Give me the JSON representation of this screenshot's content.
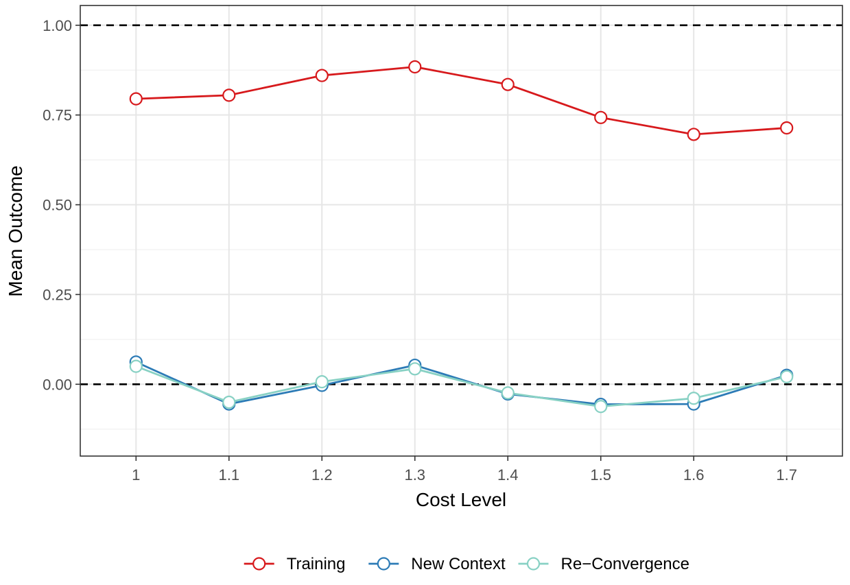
{
  "chart_data": {
    "type": "line",
    "title": "",
    "xlabel": "Cost Level",
    "ylabel": "Mean Outcome",
    "x": [
      1,
      1.1,
      1.2,
      1.3,
      1.4,
      1.5,
      1.6,
      1.7
    ],
    "x_tick_labels": [
      "1",
      "1.1",
      "1.2",
      "1.3",
      "1.4",
      "1.5",
      "1.6",
      "1.7"
    ],
    "y_ticks": [
      0,
      0.25,
      0.5,
      0.75,
      1
    ],
    "y_tick_labels": [
      "0.00",
      "0.25",
      "0.50",
      "0.75",
      "1.00"
    ],
    "xlim": [
      0.94,
      1.76
    ],
    "ylim": [
      -0.2,
      1.055
    ],
    "grid": true,
    "legend_position": "bottom",
    "reference_lines": [
      0,
      1
    ],
    "series": [
      {
        "name": "Training",
        "color": "#d7191c",
        "values": [
          0.795,
          0.805,
          0.86,
          0.884,
          0.835,
          0.743,
          0.696,
          0.714
        ]
      },
      {
        "name": "New Context",
        "color": "#2c7bb6",
        "values": [
          0.062,
          -0.055,
          -0.003,
          0.053,
          -0.027,
          -0.056,
          -0.055,
          0.025
        ]
      },
      {
        "name": "Re−Convergence",
        "color": "#88d1c4",
        "values": [
          0.05,
          -0.05,
          0.007,
          0.043,
          -0.024,
          -0.062,
          -0.039,
          0.021
        ]
      }
    ]
  }
}
